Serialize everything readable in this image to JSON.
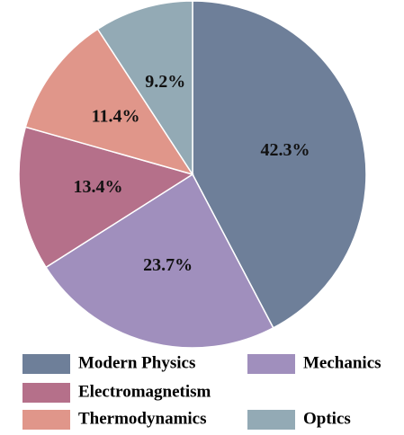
{
  "chart_data": {
    "type": "pie",
    "categories": [
      "Modern Physics",
      "Mechanics",
      "Electromagnetism",
      "Thermodynamics",
      "Optics"
    ],
    "values": [
      42.3,
      23.7,
      13.4,
      11.4,
      9.2
    ],
    "value_labels": [
      "42.3%",
      "23.7%",
      "13.4%",
      "11.4%",
      "9.2%"
    ],
    "colors": [
      "#6e7f99",
      "#a08fbd",
      "#b5708a",
      "#e0968a",
      "#93aab5"
    ]
  }
}
